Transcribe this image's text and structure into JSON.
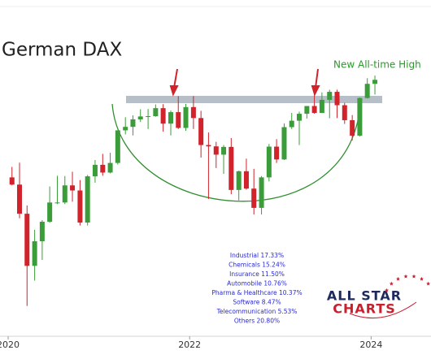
{
  "chart_data": {
    "type": "candlestick",
    "title": "German DAX",
    "annotation": "New All-time High",
    "sector_weights": [
      "Industrial 17.33%",
      "Chemicals 15.24%",
      "Insurance 11.50%",
      "Automobile 10.76%",
      "Pharma & Healthcare 10.37%",
      "Software 8.47%",
      "Telecommunication 5.53%",
      "Others 20.80%"
    ],
    "logo": {
      "line1": "ALL STAR",
      "line2": "CHARTS"
    },
    "up_color": "#3a9d3a",
    "down_color": "#d0232b",
    "xlim": [
      2019.91,
      2024.66
    ],
    "xticks": [
      2020,
      2022,
      2024
    ],
    "ylim": [
      6455,
      19886
    ],
    "x": [
      2020.042,
      2020.125,
      2020.208,
      2020.292,
      2020.375,
      2020.458,
      2020.542,
      2020.625,
      2020.708,
      2020.792,
      2020.875,
      2020.958,
      2021.042,
      2021.125,
      2021.208,
      2021.292,
      2021.375,
      2021.458,
      2021.542,
      2021.625,
      2021.708,
      2021.792,
      2021.875,
      2021.958,
      2022.042,
      2022.125,
      2022.208,
      2022.292,
      2022.375,
      2022.458,
      2022.542,
      2022.625,
      2022.708,
      2022.792,
      2022.875,
      2022.958,
      2023.042,
      2023.125,
      2023.208,
      2023.292,
      2023.375,
      2023.458,
      2023.542,
      2023.625,
      2023.708,
      2023.792,
      2023.875,
      2023.958,
      2024.042
    ],
    "open": [
      13250,
      12980,
      11890,
      9940,
      10860,
      11590,
      12310,
      12310,
      12950,
      12760,
      11560,
      13290,
      13720,
      13430,
      13790,
      15010,
      15140,
      15420,
      15530,
      15540,
      15840,
      15260,
      15690,
      15100,
      15880,
      15470,
      14460,
      14410,
      14100,
      14390,
      12780,
      13480,
      12830,
      12110,
      13250,
      14400,
      13920,
      15130,
      15370,
      15630,
      15920,
      15660,
      16150,
      16450,
      15950,
      15390,
      14810,
      16220,
      16750
    ],
    "high": [
      13640,
      13800,
      12200,
      11290,
      11650,
      12910,
      13310,
      13300,
      13460,
      13150,
      13340,
      13900,
      14130,
      14170,
      15010,
      15500,
      15570,
      15800,
      15810,
      15980,
      15990,
      15750,
      16290,
      16000,
      16290,
      15740,
      14930,
      14580,
      14460,
      14720,
      13500,
      13950,
      13570,
      13300,
      14500,
      14680,
      15270,
      15660,
      15710,
      15920,
      16330,
      16430,
      16530,
      16530,
      16040,
      15580,
      16240,
      16960,
      17060
    ],
    "low": [
      12950,
      11720,
      8440,
      9390,
      10160,
      11550,
      12250,
      12250,
      12340,
      11450,
      11450,
      13050,
      13310,
      13400,
      13730,
      14860,
      14820,
      15320,
      15060,
      15520,
      14960,
      14820,
      15060,
      14990,
      15060,
      13990,
      12440,
      13600,
      13380,
      12620,
      12390,
      12790,
      11860,
      11860,
      13100,
      13790,
      13900,
      15060,
      14460,
      15450,
      15630,
      15720,
      15460,
      15470,
      15250,
      14630,
      14780,
      16200,
      16350
    ],
    "close": [
      12980,
      11890,
      9940,
      10860,
      11590,
      12310,
      12310,
      12950,
      12760,
      11560,
      13290,
      13720,
      13430,
      13790,
      15010,
      15140,
      15420,
      15530,
      15540,
      15840,
      15260,
      15690,
      15100,
      15880,
      15470,
      14460,
      14410,
      14100,
      14390,
      12780,
      13480,
      12830,
      12110,
      13250,
      14400,
      13920,
      15130,
      15370,
      15630,
      15920,
      15660,
      16150,
      16450,
      15950,
      15390,
      14810,
      16220,
      16750,
      16900
    ]
  }
}
